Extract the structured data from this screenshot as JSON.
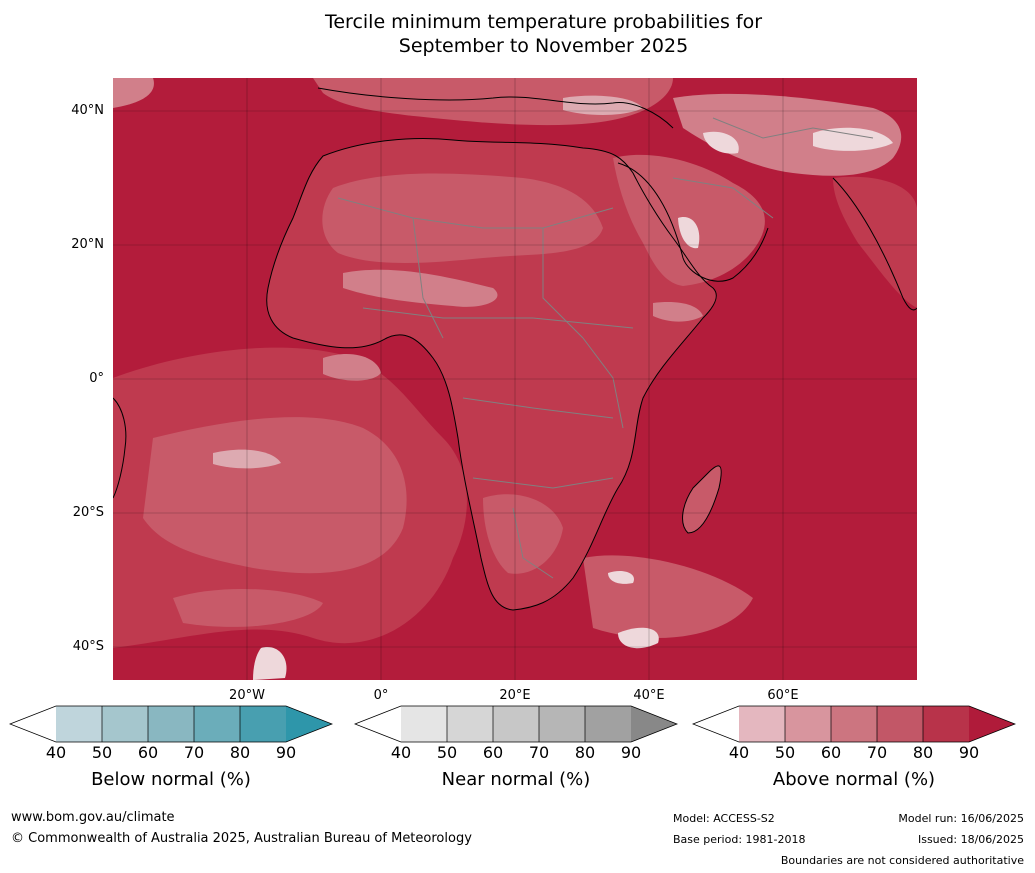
{
  "title": {
    "line1": "Tercile minimum temperature probabilities for",
    "line2": "September to November 2025"
  },
  "axes": {
    "lat_labels": [
      "40°N",
      "20°N",
      "0°",
      "20°S",
      "40°S"
    ],
    "lon_labels": [
      "20°W",
      "0°",
      "20°E",
      "40°E",
      "60°E"
    ],
    "lat_range": [
      -45,
      45
    ],
    "lon_range": [
      -40,
      80
    ]
  },
  "colorbars": [
    {
      "label": "Below normal (%)",
      "ticks": [
        "40",
        "50",
        "60",
        "70",
        "80",
        "90"
      ],
      "colors": [
        "#ffffff",
        "#bfd5dc",
        "#a5c6cd",
        "#89b7c1",
        "#6badba",
        "#489fb0",
        "#2e96aa"
      ]
    },
    {
      "label": "Near normal (%)",
      "ticks": [
        "40",
        "50",
        "60",
        "70",
        "80",
        "90"
      ],
      "colors": [
        "#ffffff",
        "#e5e5e5",
        "#d6d6d6",
        "#c7c7c7",
        "#b6b6b6",
        "#a1a1a1",
        "#888888"
      ]
    },
    {
      "label": "Above normal (%)",
      "ticks": [
        "40",
        "50",
        "60",
        "70",
        "80",
        "90"
      ],
      "colors": [
        "#ffffff",
        "#e4b7bf",
        "#d8959e",
        "#cc7580",
        "#c25767",
        "#b8334a",
        "#b01b3a"
      ]
    }
  ],
  "map_colors": {
    "p90": "#b31c3b",
    "p80": "#bf3a4f",
    "p70": "#c85a69",
    "p60": "#d17f8a",
    "p50": "#ddaab1",
    "p40": "#eed8db",
    "coast": "#000000",
    "border": "#808080"
  },
  "footer": {
    "website": "www.bom.gov.au/climate",
    "copyright": "© Commonwealth of Australia 2025, Australian Bureau of Meteorology",
    "model": "Model: ACCESS-S2",
    "base_period": "Base period: 1981-2018",
    "model_run": "Model run: 16/06/2025",
    "issued": "Issued: 18/06/2025",
    "disclaimer": "Boundaries are not considered authoritative"
  }
}
